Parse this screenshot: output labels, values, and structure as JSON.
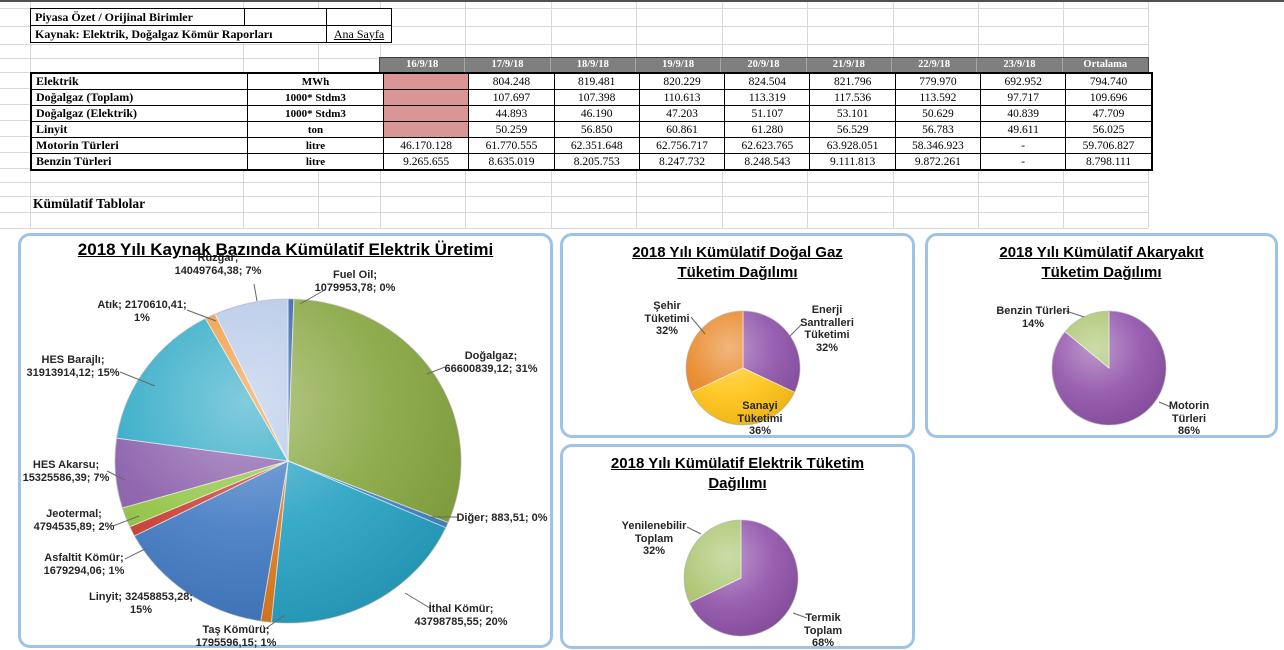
{
  "sheet": {
    "header_box": {
      "row1": "Piyasa Özet / Orijinal Birimler",
      "row2": "Kaynak: Elektrik, Doğalgaz Kömür Raporları",
      "link": "Ana Sayfa"
    },
    "section_heading": "Kümülatif Tablolar",
    "colors": {
      "header_bg": "#7f7f7f",
      "empty_cell": "#d99694",
      "chart_border": "#9dc3e6"
    }
  },
  "table": {
    "date_columns": [
      "16/9/18",
      "17/9/18",
      "18/9/18",
      "19/9/18",
      "20/9/18",
      "21/9/18",
      "22/9/18",
      "23/9/18",
      "Ortalama"
    ],
    "rows": [
      {
        "label": "Elektrik",
        "unit": "MWh",
        "values": [
          "",
          "804.248",
          "819.481",
          "820.229",
          "824.504",
          "821.796",
          "779.970",
          "692.952",
          "794.740"
        ]
      },
      {
        "label": "Doğalgaz (Toplam)",
        "unit": "1000* Stdm3",
        "values": [
          "",
          "107.697",
          "107.398",
          "110.613",
          "113.319",
          "117.536",
          "113.592",
          "97.717",
          "109.696"
        ]
      },
      {
        "label": "Doğalgaz (Elektrik)",
        "unit": "1000* Stdm3",
        "values": [
          "",
          "44.893",
          "46.190",
          "47.203",
          "51.107",
          "53.101",
          "50.629",
          "40.839",
          "47.709"
        ]
      },
      {
        "label": "Linyit",
        "unit": "ton",
        "values": [
          "",
          "50.259",
          "56.850",
          "60.861",
          "61.280",
          "56.529",
          "56.783",
          "49.611",
          "56.025"
        ]
      },
      {
        "label": "Motorin Türleri",
        "unit": "litre",
        "values": [
          "46.170.128",
          "61.770.555",
          "62.351.648",
          "62.756.717",
          "62.623.765",
          "63.928.051",
          "58.346.923",
          "-",
          "59.706.827"
        ]
      },
      {
        "label": "Benzin Türleri",
        "unit": "litre",
        "values": [
          "9.265.655",
          "8.635.019",
          "8.205.753",
          "8.247.732",
          "8.248.543",
          "9.111.813",
          "9.872.261",
          "-",
          "8.798.111"
        ]
      }
    ]
  },
  "chart_data": [
    {
      "type": "pie",
      "title_lines": [
        "2018 Yılı Kaynak Bazında Kümülatif Elektrik Üretimi"
      ],
      "slices": [
        {
          "label": "Fuel Oil",
          "value": 1079953.78,
          "pct": 0,
          "color": "#2b5ca8",
          "label_lines": [
            "Fuel Oil;",
            "1079953,78; 0%"
          ]
        },
        {
          "label": "Doğalgaz",
          "value": 66600839.12,
          "pct": 31,
          "color": "#84a43c",
          "label_lines": [
            "Doğalgaz;",
            "66600839,12; 31%"
          ]
        },
        {
          "label": "Diğer",
          "value": 883.51,
          "pct": 0,
          "color": "#3e82c4",
          "label_lines": [
            "Diğer; 883,51; 0%"
          ]
        },
        {
          "label": "İthal Kömür",
          "value": 43798785.55,
          "pct": 20,
          "color": "#23a0c2",
          "label_lines": [
            "İthal Kömür;",
            "43798785,55; 20%"
          ]
        },
        {
          "label": "Taş Kömürü",
          "value": 1795596.15,
          "pct": 1,
          "color": "#dd7718",
          "label_lines": [
            "Taş Kömürü;",
            "1795596,15; 1%"
          ]
        },
        {
          "label": "Linyit",
          "value": 32458853.28,
          "pct": 15,
          "color": "#3d77c2",
          "label_lines": [
            "Linyit; 32458853,28;",
            "15%"
          ]
        },
        {
          "label": "Asfaltit Kömür",
          "value": 1679294.06,
          "pct": 1,
          "color": "#c8392f",
          "label_lines": [
            "Asfaltit Kömür;",
            "1679294,06; 1%"
          ]
        },
        {
          "label": "Jeotermal",
          "value": 4794535.89,
          "pct": 2,
          "color": "#8fc33f",
          "label_lines": [
            "Jeotermal;",
            "4794535,89; 2%"
          ]
        },
        {
          "label": "HES Akarsu",
          "value": 15325586.39,
          "pct": 7,
          "color": "#8659a8",
          "label_lines": [
            "HES Akarsu;",
            "15325586,39; 7%"
          ]
        },
        {
          "label": "HES Barajlı",
          "value": 31913914.12,
          "pct": 15,
          "color": "#27a7c4",
          "label_lines": [
            "HES Barajlı;",
            "31913914,12; 15%"
          ]
        },
        {
          "label": "Atık",
          "value": 2170610.41,
          "pct": 1,
          "color": "#f09437",
          "label_lines": [
            "Atık; 2170610,41;",
            "1%"
          ]
        },
        {
          "label": "Rüzgar",
          "value": 14049764.38,
          "pct": 7,
          "color": "#b3c6e7",
          "label_lines": [
            "Rüzgar;",
            "14049764,38; 7%"
          ]
        }
      ]
    },
    {
      "type": "pie",
      "title_lines": [
        "2018 Yılı Kümülatif Doğal Gaz",
        "Tüketim Dağılımı"
      ],
      "slices": [
        {
          "label": "Enerji Santralleri Tüketimi",
          "pct": 32,
          "color": "#8c4fa8",
          "label_lines": [
            "Enerji",
            "Santralleri",
            "Tüketimi",
            "32%"
          ]
        },
        {
          "label": "Sanayi Tüketimi",
          "pct": 36,
          "color": "#ffc412",
          "label_lines": [
            "Sanayi",
            "Tüketimi",
            "36%"
          ]
        },
        {
          "label": "Şehir Tüketimi",
          "pct": 32,
          "color": "#e8821e",
          "label_lines": [
            "Şehir",
            "Tüketimi",
            "32%"
          ]
        }
      ]
    },
    {
      "type": "pie",
      "title_lines": [
        "2018 Yılı Kümülatif Akaryakıt",
        "Tüketim Dağılımı"
      ],
      "slices": [
        {
          "label": "Motorin Türleri",
          "pct": 86,
          "color": "#8e4fa8",
          "label_lines": [
            "Motorin",
            "Türleri",
            "86%"
          ]
        },
        {
          "label": "Benzin Türleri",
          "pct": 14,
          "color": "#a8c36a",
          "label_lines": [
            "Benzin Türleri",
            "14%"
          ]
        }
      ]
    },
    {
      "type": "pie",
      "title_lines": [
        "2018 Yılı Kümülatif Elektrik Tüketim",
        "Dağılımı"
      ],
      "slices": [
        {
          "label": "Termik Toplam",
          "pct": 68,
          "color": "#8e4fa8",
          "label_lines": [
            "Termik",
            "Toplam",
            "68%"
          ]
        },
        {
          "label": "Yenilenebilir Toplam",
          "pct": 32,
          "color": "#a8c36a",
          "label_lines": [
            "Yenilenebilir",
            "Toplam",
            "32%"
          ]
        }
      ]
    }
  ]
}
